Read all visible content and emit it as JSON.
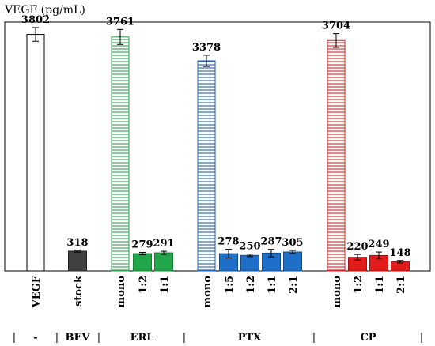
{
  "chart_data": {
    "type": "bar",
    "ylabel": "VEGF (pg/mL)",
    "ylim": [
      0,
      4000
    ],
    "grid": false,
    "categories": [
      "VEGF",
      "stock",
      "mono",
      "1:2",
      "1:1",
      "mono",
      "1:5",
      "1:2",
      "1:1",
      "2:1",
      "mono",
      "1:2",
      "1:1",
      "2:1"
    ],
    "values": [
      3802,
      318,
      3761,
      279,
      291,
      3378,
      278,
      250,
      287,
      305,
      3704,
      220,
      249,
      148
    ],
    "value_labels": [
      "3802",
      "318",
      "3761",
      "279",
      "291",
      "3378",
      "278",
      "250",
      "287",
      "305",
      "3704",
      "220",
      "249",
      "148"
    ],
    "errors": [
      110,
      15,
      120,
      20,
      25,
      90,
      70,
      20,
      60,
      25,
      110,
      45,
      55,
      20
    ],
    "groups": [
      {
        "label": "-",
        "bar_indices": [
          0
        ]
      },
      {
        "label": "BEV",
        "bar_indices": [
          1
        ]
      },
      {
        "label": "ERL",
        "bar_indices": [
          2,
          3,
          4
        ]
      },
      {
        "label": "PTX",
        "bar_indices": [
          5,
          6,
          7,
          8,
          9
        ]
      },
      {
        "label": "CP",
        "bar_indices": [
          10,
          11,
          12,
          13
        ]
      }
    ],
    "separator_label": "|",
    "bar_styles": [
      {
        "fill": "#ffffff",
        "stroke": "#000000",
        "hatch": false
      },
      {
        "fill": "#404040",
        "stroke": "#222222",
        "hatch": false
      },
      {
        "fill": "#ffffff",
        "stroke": "#2e9e4a",
        "hatch": true
      },
      {
        "fill": "#22a64a",
        "stroke": "#1a7a36",
        "hatch": false
      },
      {
        "fill": "#22a64a",
        "stroke": "#1a7a36",
        "hatch": false
      },
      {
        "fill": "#ffffff",
        "stroke": "#1f5fbf",
        "hatch": true
      },
      {
        "fill": "#1f6fc9",
        "stroke": "#144a8a",
        "hatch": false
      },
      {
        "fill": "#1f6fc9",
        "stroke": "#144a8a",
        "hatch": false
      },
      {
        "fill": "#1f6fc9",
        "stroke": "#144a8a",
        "hatch": false
      },
      {
        "fill": "#1f6fc9",
        "stroke": "#144a8a",
        "hatch": false
      },
      {
        "fill": "#ffffff",
        "stroke": "#e02020",
        "hatch": true
      },
      {
        "fill": "#e31b1b",
        "stroke": "#a01010",
        "hatch": false
      },
      {
        "fill": "#e31b1b",
        "stroke": "#a01010",
        "hatch": false
      },
      {
        "fill": "#e31b1b",
        "stroke": "#a01010",
        "hatch": false
      }
    ]
  }
}
